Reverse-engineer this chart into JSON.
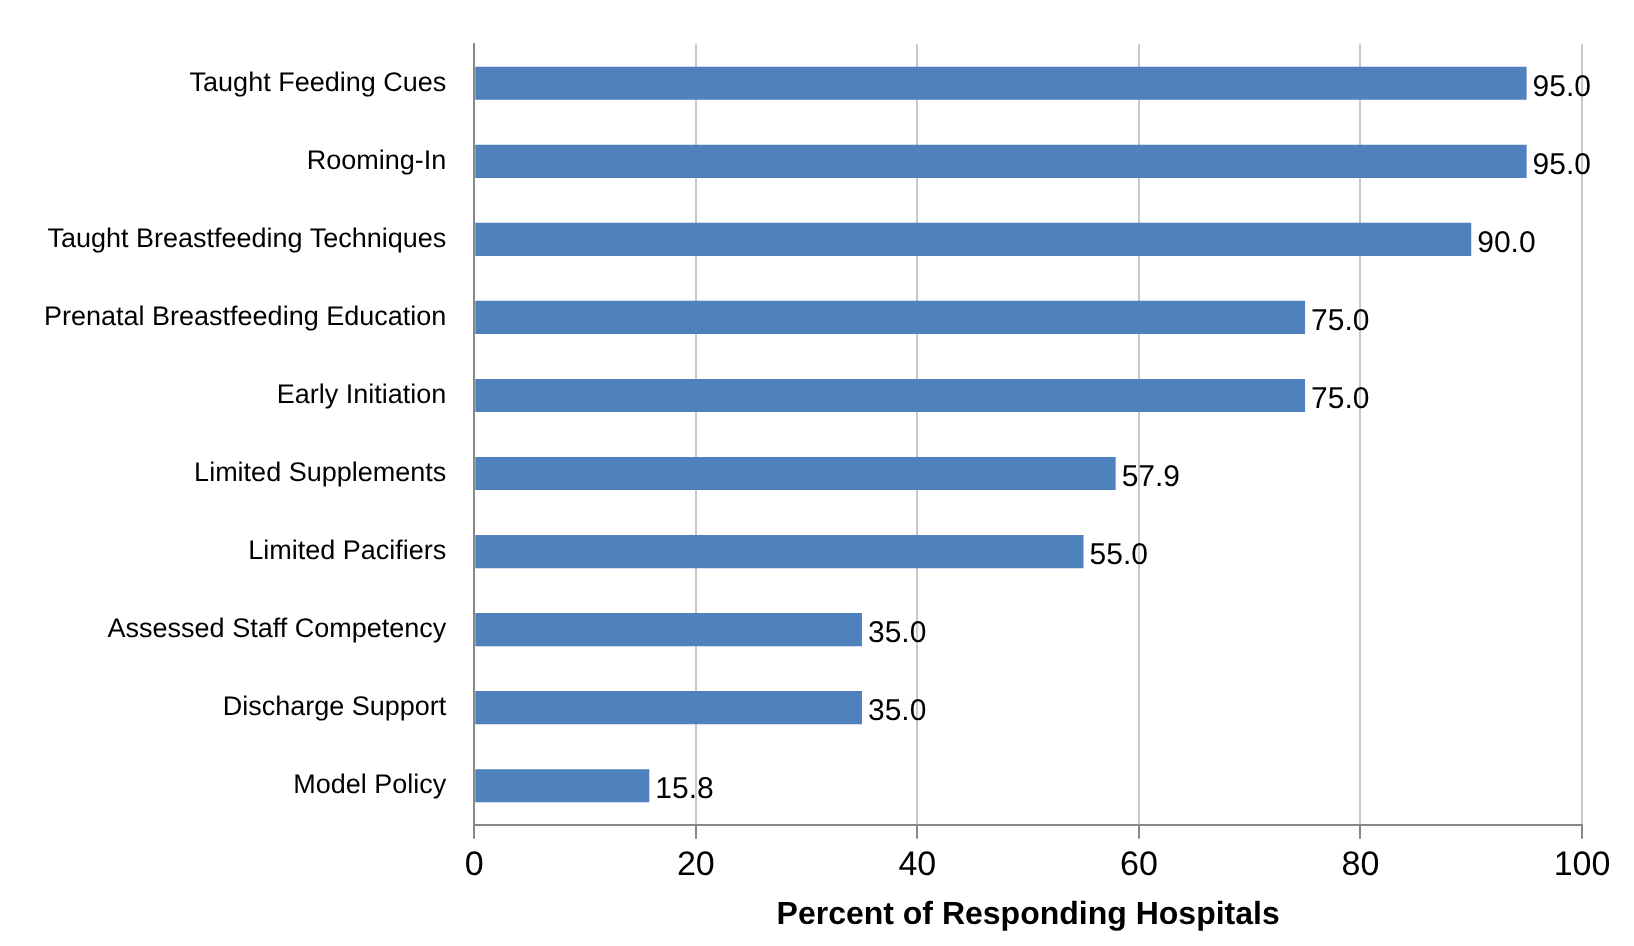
{
  "chart_data": {
    "type": "bar",
    "orientation": "horizontal",
    "xlabel": "Percent of Responding Hospitals",
    "categories": [
      "Taught Feeding Cues",
      "Rooming-In",
      "Taught Breastfeeding Techniques",
      "Prenatal Breastfeeding Education",
      "Early Initiation",
      "Limited Supplements",
      "Limited Pacifiers",
      "Assessed Staff Competency",
      "Discharge Support",
      "Model Policy"
    ],
    "values": [
      95,
      95,
      90,
      75,
      75,
      57.9,
      55,
      35,
      35,
      15.8
    ],
    "value_labels": [
      "95.0",
      "95.0",
      "90.0",
      "75.0",
      "75.0",
      "57.9",
      "55.0",
      "35.0",
      "35.0",
      "15.8"
    ],
    "color": "#4f81bd",
    "xlim": [
      0,
      100
    ],
    "xticks": [
      0,
      20,
      40,
      60,
      80,
      100
    ],
    "grid": "x",
    "legend": false
  }
}
